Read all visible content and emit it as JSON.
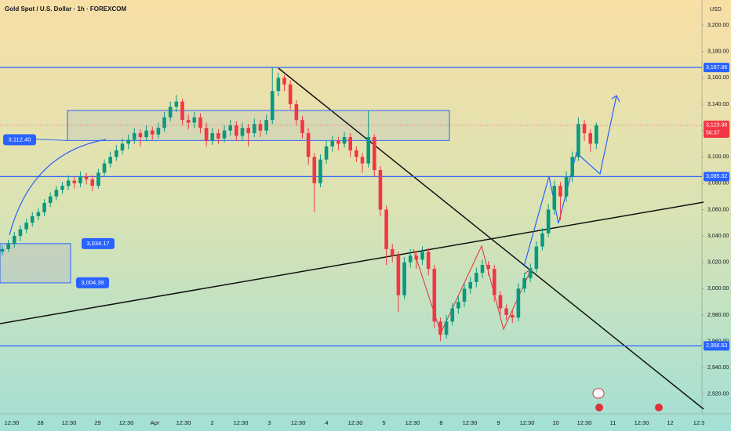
{
  "chart_data": {
    "type": "candlestick",
    "title": "Gold Spot / U.S. Dollar · 1h · FOREXCOM",
    "currency": "USD",
    "up_color": "#089981",
    "down_color": "#f23645",
    "ylim": [
      2905.6,
      3219.1
    ],
    "yticks": [
      {
        "value": 3200,
        "label": "3,200.00"
      },
      {
        "value": 3180,
        "label": "3,180.00"
      },
      {
        "value": 3160,
        "label": "3,160.00"
      },
      {
        "value": 3140,
        "label": "3,140.00"
      },
      {
        "value": 3120,
        "label": "3,120.00"
      },
      {
        "value": 3100,
        "label": "3,100.00"
      },
      {
        "value": 3080,
        "label": "3,080.00"
      },
      {
        "value": 3060,
        "label": "3,060.00"
      },
      {
        "value": 3040,
        "label": "3,040.00"
      },
      {
        "value": 3020,
        "label": "3,020.00"
      },
      {
        "value": 3000,
        "label": "3,000.00"
      },
      {
        "value": 2980,
        "label": "2,980.00"
      },
      {
        "value": 2960,
        "label": "2,960.00"
      },
      {
        "value": 2940,
        "label": "2,940.00"
      },
      {
        "value": 2920,
        "label": "2,920.00"
      }
    ],
    "x_labels": [
      "12:30",
      "28",
      "12:30",
      "29",
      "12:30",
      "Apr",
      "12:30",
      "2",
      "12:30",
      "3",
      "12:30",
      "4",
      "12:30",
      "5",
      "12:30",
      "8",
      "12:30",
      "9",
      "12:30",
      "10",
      "12:30",
      "11",
      "12:30",
      "12",
      "12:3"
    ],
    "levels": [
      {
        "value": 3167.86,
        "label": "3,167.86"
      },
      {
        "value": 3085.02,
        "label": "3,085.02"
      },
      {
        "value": 2956.53,
        "label": "2,956.53"
      }
    ],
    "last_price": {
      "value": 3123.98,
      "label": "3,123.98"
    },
    "countdown": "56:37",
    "zone_low": {
      "value": 3112.4,
      "label": "3,112.40"
    },
    "range_high": {
      "value": 3034.17,
      "label": "3,034.17"
    },
    "range_low": {
      "value": 3004.39,
      "label": "3,004.39"
    },
    "candles": [
      [
        3028,
        3033,
        3025,
        3030
      ],
      [
        3030,
        3037,
        3028,
        3034
      ],
      [
        3034,
        3043,
        3031,
        3040
      ],
      [
        3040,
        3048,
        3036,
        3045
      ],
      [
        3045,
        3053,
        3042,
        3050
      ],
      [
        3050,
        3058,
        3047,
        3055
      ],
      [
        3055,
        3061,
        3052,
        3058
      ],
      [
        3058,
        3068,
        3055,
        3065
      ],
      [
        3065,
        3073,
        3062,
        3070
      ],
      [
        3070,
        3078,
        3067,
        3075
      ],
      [
        3075,
        3081,
        3072,
        3078
      ],
      [
        3078,
        3086,
        3075,
        3082
      ],
      [
        3082,
        3085,
        3076,
        3080
      ],
      [
        3080,
        3089,
        3077,
        3085
      ],
      [
        3085,
        3088,
        3079,
        3083
      ],
      [
        3083,
        3086,
        3074,
        3078
      ],
      [
        3078,
        3091,
        3076,
        3088
      ],
      [
        3088,
        3098,
        3085,
        3095
      ],
      [
        3095,
        3104,
        3092,
        3100
      ],
      [
        3100,
        3109,
        3097,
        3105
      ],
      [
        3105,
        3114,
        3102,
        3110
      ],
      [
        3110,
        3117,
        3106,
        3113
      ],
      [
        3113,
        3122,
        3110,
        3118
      ],
      [
        3118,
        3121,
        3108,
        3115
      ],
      [
        3115,
        3124,
        3112,
        3120
      ],
      [
        3120,
        3123,
        3113,
        3117
      ],
      [
        3117,
        3126,
        3114,
        3122
      ],
      [
        3122,
        3134,
        3119,
        3130
      ],
      [
        3130,
        3142,
        3127,
        3138
      ],
      [
        3138,
        3147,
        3134,
        3142
      ],
      [
        3142,
        3144,
        3124,
        3128
      ],
      [
        3128,
        3132,
        3121,
        3126
      ],
      [
        3126,
        3134,
        3122,
        3130
      ],
      [
        3130,
        3133,
        3118,
        3122
      ],
      [
        3122,
        3126,
        3108,
        3112
      ],
      [
        3112,
        3122,
        3109,
        3118
      ],
      [
        3118,
        3121,
        3110,
        3114
      ],
      [
        3114,
        3124,
        3111,
        3120
      ],
      [
        3120,
        3128,
        3116,
        3124
      ],
      [
        3124,
        3127,
        3112,
        3116
      ],
      [
        3116,
        3126,
        3113,
        3122
      ],
      [
        3122,
        3125,
        3108,
        3118
      ],
      [
        3118,
        3129,
        3115,
        3125
      ],
      [
        3125,
        3128,
        3115,
        3120
      ],
      [
        3120,
        3132,
        3117,
        3128
      ],
      [
        3128,
        3168,
        3125,
        3150
      ],
      [
        3150,
        3164,
        3146,
        3160
      ],
      [
        3160,
        3162,
        3150,
        3155
      ],
      [
        3155,
        3158,
        3136,
        3140
      ],
      [
        3140,
        3143,
        3124,
        3128
      ],
      [
        3128,
        3131,
        3114,
        3118
      ],
      [
        3118,
        3122,
        3094,
        3100
      ],
      [
        3100,
        3103,
        3058,
        3080
      ],
      [
        3080,
        3102,
        3077,
        3098
      ],
      [
        3098,
        3112,
        3095,
        3108
      ],
      [
        3108,
        3116,
        3104,
        3112
      ],
      [
        3112,
        3115,
        3105,
        3110
      ],
      [
        3110,
        3119,
        3107,
        3115
      ],
      [
        3115,
        3118,
        3100,
        3105
      ],
      [
        3105,
        3108,
        3096,
        3100
      ],
      [
        3100,
        3103,
        3088,
        3095
      ],
      [
        3095,
        3135,
        3092,
        3115
      ],
      [
        3115,
        3117,
        3085,
        3090
      ],
      [
        3090,
        3093,
        3055,
        3060
      ],
      [
        3060,
        3063,
        3018,
        3030
      ],
      [
        3030,
        3034,
        3020,
        3025
      ],
      [
        3025,
        3028,
        2982,
        2995
      ],
      [
        2995,
        3024,
        2992,
        3020
      ],
      [
        3020,
        3030,
        3016,
        3025
      ],
      [
        3025,
        3028,
        3015,
        3022
      ],
      [
        3022,
        3032,
        3018,
        3028
      ],
      [
        3028,
        3031,
        3010,
        3015
      ],
      [
        3015,
        3018,
        2970,
        2975
      ],
      [
        2975,
        2978,
        2960,
        2965
      ],
      [
        2965,
        2980,
        2962,
        2975
      ],
      [
        2975,
        2989,
        2972,
        2985
      ],
      [
        2985,
        2994,
        2981,
        2990
      ],
      [
        2990,
        3004,
        2986,
        3000
      ],
      [
        3000,
        3009,
        2996,
        3005
      ],
      [
        3005,
        3016,
        3001,
        3012
      ],
      [
        3012,
        3022,
        3008,
        3018
      ],
      [
        3018,
        3021,
        3010,
        3015
      ],
      [
        3015,
        3018,
        2990,
        2995
      ],
      [
        2995,
        2998,
        2980,
        2985
      ],
      [
        2985,
        2988,
        2976,
        2980
      ],
      [
        2980,
        2984,
        2974,
        2978
      ],
      [
        2978,
        3004,
        2975,
        3000
      ],
      [
        3000,
        3012,
        2997,
        3008
      ],
      [
        3008,
        3019,
        3005,
        3015
      ],
      [
        3015,
        3036,
        3012,
        3032
      ],
      [
        3032,
        3046,
        3029,
        3042
      ],
      [
        3042,
        3064,
        3039,
        3060
      ],
      [
        3060,
        3082,
        3056,
        3078
      ],
      [
        3078,
        3081,
        3052,
        3070
      ],
      [
        3070,
        3089,
        3066,
        3085
      ],
      [
        3085,
        3104,
        3081,
        3100
      ],
      [
        3100,
        3130,
        3097,
        3125
      ],
      [
        3125,
        3128,
        3112,
        3118
      ],
      [
        3118,
        3121,
        3104,
        3110
      ],
      [
        3110,
        3126,
        3106,
        3124
      ]
    ]
  }
}
